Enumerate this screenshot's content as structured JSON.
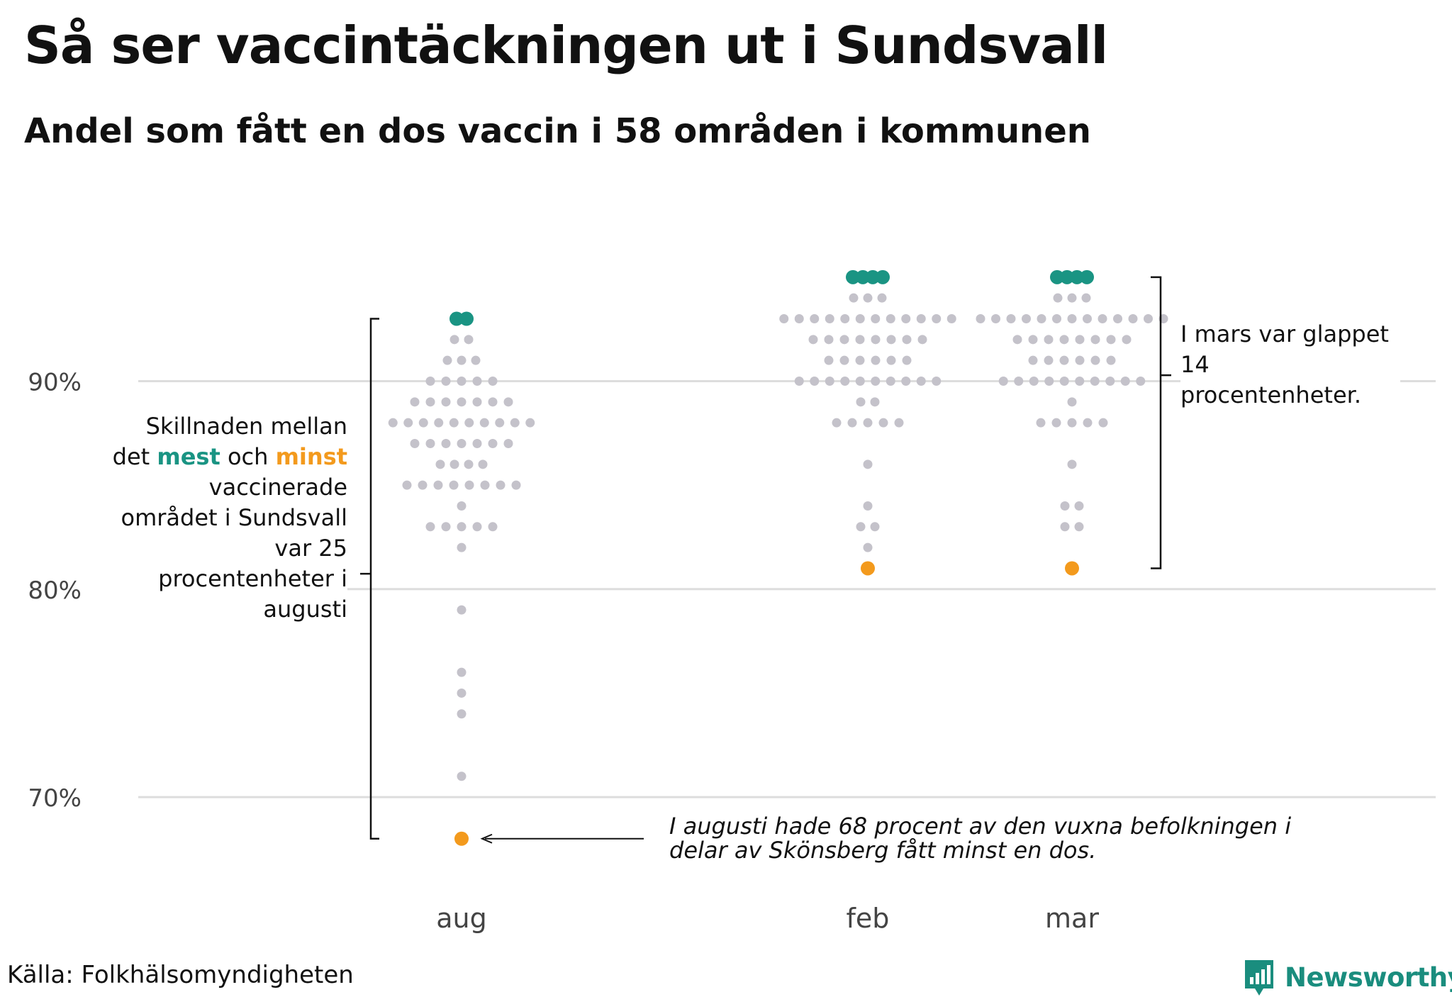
{
  "title": "Så ser vaccintäckningen ut i Sundsvall",
  "subtitle": "Andel som fått en dos vaccin i 58 områden i kommunen",
  "source": "Källa: Folkhälsomyndigheten",
  "logo_text": "Newsworthy",
  "annotations": {
    "left": {
      "part1": "Skillnaden mellan det ",
      "mest": "mest",
      "part2": " och ",
      "minst": "minst",
      "part3": " vaccinerade området i Sundsvall var 25  procentenheter i augusti"
    },
    "right": "I mars var glappet 14 procentenheter.",
    "bottom": "I augusti hade 68 procent av den vuxna befolkningen i delar av Skönsberg fått minst en dos."
  },
  "chart_data": {
    "type": "scatter",
    "subtype": "beeswarm",
    "title": "Så ser vaccintäckningen ut i Sundsvall",
    "subtitle": "Andel som fått en dos vaccin i 58 områden i kommunen",
    "xlabel": "",
    "ylabel": "",
    "ylim": [
      65,
      96
    ],
    "y_ticks": [
      70,
      80,
      90
    ],
    "y_tick_labels": [
      "70%",
      "80%",
      "90%"
    ],
    "grid": true,
    "categories": [
      "aug",
      "feb",
      "mar"
    ],
    "colors": {
      "regular": "#c4c2ca",
      "max": "#1a9483",
      "min": "#f39a1d",
      "grid": "#dddddd"
    },
    "series": [
      {
        "category": "aug",
        "max_value": 93,
        "max_count": 2,
        "min_value": 68,
        "min_count": 1,
        "values": {
          "92": 2,
          "91": 3,
          "90": 5,
          "89": 7,
          "88": 10,
          "87": 7,
          "86": 4,
          "85": 8,
          "84": 1,
          "83": 5,
          "82": 1,
          "79": 1,
          "76": 1,
          "75": 1,
          "74": 1,
          "71": 1
        }
      },
      {
        "category": "feb",
        "max_value": 95,
        "max_count": 4,
        "min_value": 81,
        "min_count": 1,
        "values": {
          "94": 3,
          "93": 12,
          "92": 8,
          "91": 6,
          "90": 10,
          "89": 2,
          "88": 5,
          "86": 1,
          "84": 1,
          "83": 2,
          "82": 1
        }
      },
      {
        "category": "mar",
        "max_value": 95,
        "max_count": 4,
        "min_value": 81,
        "min_count": 1,
        "values": {
          "94": 3,
          "93": 13,
          "92": 8,
          "91": 6,
          "90": 10,
          "89": 1,
          "88": 5,
          "86": 1,
          "84": 2,
          "83": 2
        }
      }
    ]
  }
}
